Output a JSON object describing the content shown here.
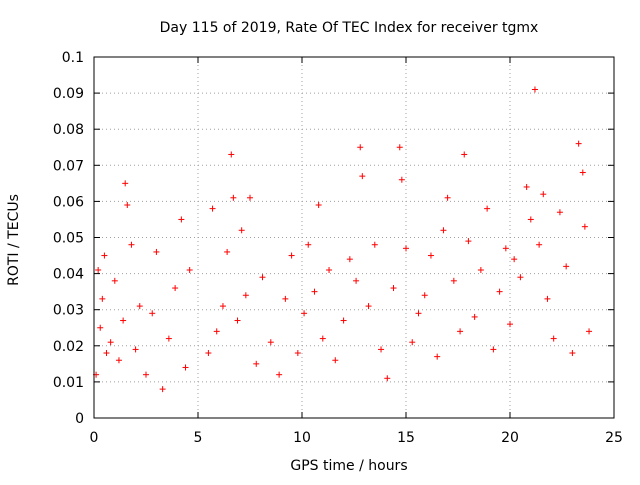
{
  "chart_data": {
    "type": "scatter",
    "title": "Day 115 of 2019, Rate Of TEC Index for receiver tgmx",
    "xlabel": "GPS time / hours",
    "ylabel": "ROTI / TECUs",
    "xlim": [
      0,
      25
    ],
    "ylim": [
      0,
      0.1
    ],
    "x_ticks": [
      0,
      5,
      10,
      15,
      20,
      25
    ],
    "x_tick_labels": [
      "0",
      "5",
      "10",
      "15",
      "20",
      "25"
    ],
    "y_ticks": [
      0,
      0.01,
      0.02,
      0.03,
      0.04,
      0.05,
      0.06,
      0.07,
      0.08,
      0.09,
      0.1
    ],
    "y_tick_labels": [
      "0",
      "0.01",
      "0.02",
      "0.03",
      "0.04",
      "0.05",
      "0.06",
      "0.07",
      "0.08",
      "0.09",
      "0.1"
    ],
    "grid": true,
    "marker": "+",
    "color": "#ff0000",
    "series": [
      {
        "x": [
          0.1,
          0.2,
          0.3,
          0.4,
          0.5,
          0.6,
          0.8,
          1.0,
          1.2,
          1.4,
          1.5,
          1.6,
          1.8,
          2.0,
          2.2,
          2.5,
          2.8,
          3.0,
          3.3,
          3.6,
          3.9,
          4.2,
          4.4,
          4.6,
          5.5,
          5.7,
          5.9,
          6.2,
          6.4,
          6.6,
          6.7,
          6.9,
          7.1,
          7.3,
          7.5,
          7.8,
          8.1,
          8.5,
          8.9,
          9.2,
          9.5,
          9.8,
          10.1,
          10.3,
          10.6,
          10.8,
          11.0,
          11.3,
          11.6,
          12.0,
          12.3,
          12.6,
          12.8,
          12.9,
          13.2,
          13.5,
          13.8,
          14.1,
          14.4,
          14.7,
          14.8,
          15.0,
          15.3,
          15.6,
          15.9,
          16.2,
          16.5,
          16.8,
          17.0,
          17.3,
          17.6,
          17.8,
          18.0,
          18.3,
          18.6,
          18.9,
          19.2,
          19.5,
          19.8,
          20.0,
          20.2,
          20.5,
          20.8,
          21.0,
          21.2,
          21.4,
          21.6,
          21.8,
          22.1,
          22.4,
          22.7,
          23.0,
          23.3,
          23.5,
          23.6,
          23.8
        ],
        "y": [
          0.012,
          0.041,
          0.025,
          0.033,
          0.045,
          0.018,
          0.021,
          0.038,
          0.016,
          0.027,
          0.065,
          0.059,
          0.048,
          0.019,
          0.031,
          0.012,
          0.029,
          0.046,
          0.008,
          0.022,
          0.036,
          0.055,
          0.014,
          0.041,
          0.018,
          0.058,
          0.024,
          0.031,
          0.046,
          0.073,
          0.061,
          0.027,
          0.052,
          0.034,
          0.061,
          0.015,
          0.039,
          0.021,
          0.012,
          0.033,
          0.045,
          0.018,
          0.029,
          0.048,
          0.035,
          0.059,
          0.022,
          0.041,
          0.016,
          0.027,
          0.044,
          0.038,
          0.075,
          0.067,
          0.031,
          0.048,
          0.019,
          0.011,
          0.036,
          0.075,
          0.066,
          0.047,
          0.021,
          0.029,
          0.034,
          0.045,
          0.017,
          0.052,
          0.061,
          0.038,
          0.024,
          0.073,
          0.049,
          0.028,
          0.041,
          0.058,
          0.019,
          0.035,
          0.047,
          0.026,
          0.044,
          0.039,
          0.064,
          0.055,
          0.091,
          0.048,
          0.062,
          0.033,
          0.022,
          0.057,
          0.042,
          0.018,
          0.076,
          0.068,
          0.053,
          0.024
        ]
      }
    ]
  }
}
